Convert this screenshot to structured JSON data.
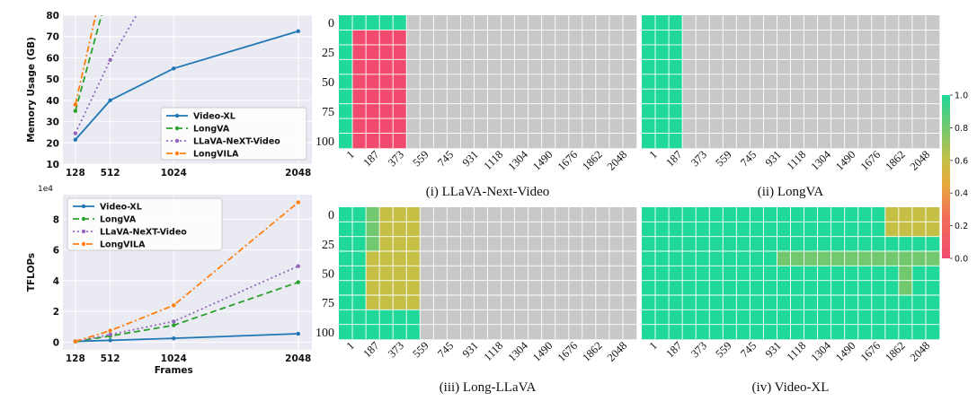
{
  "chart_data": [
    {
      "type": "line",
      "ylabel": "Memory Usage (GB)",
      "xlabel": "",
      "x_ticks": [
        "128",
        "512",
        "1024",
        "2048"
      ],
      "y_ticks": [
        "10",
        "20",
        "30",
        "40",
        "50",
        "60",
        "70",
        "80"
      ],
      "ylim": [
        10,
        80
      ],
      "grid": true,
      "legend_position": "lower-right",
      "series": [
        {
          "name": "Video-XL",
          "color": "#1f77b4",
          "style": "solid",
          "marker": "dot",
          "points": [
            [
              128,
              21.5
            ],
            [
              512,
              40
            ],
            [
              1024,
              55
            ],
            [
              2048,
              72.5
            ]
          ]
        },
        {
          "name": "LongVA",
          "color": "#2ca02c",
          "style": "dashed",
          "marker": "dot",
          "points": [
            [
              128,
              35
            ],
            [
              512,
              95
            ]
          ]
        },
        {
          "name": "LLaVA-NeXT-Video",
          "color": "#9467bd",
          "style": "dotted",
          "marker": "dot",
          "points": [
            [
              128,
              24.5
            ],
            [
              512,
              59
            ],
            [
              1024,
              110
            ]
          ]
        },
        {
          "name": "LongVILA",
          "color": "#ff7f0e",
          "style": "dashdot",
          "marker": "dot",
          "points": [
            [
              128,
              38
            ],
            [
              512,
              110
            ]
          ]
        }
      ]
    },
    {
      "type": "line",
      "ylabel": "TFLOPs",
      "xlabel": "Frames",
      "scale_label": "1e4",
      "x_ticks": [
        "128",
        "512",
        "1024",
        "2048"
      ],
      "y_ticks": [
        "0",
        "2",
        "4",
        "6",
        "8"
      ],
      "ylim": [
        -0.5,
        9.6
      ],
      "grid": true,
      "legend_position": "upper-left",
      "series": [
        {
          "name": "Video-XL",
          "color": "#1f77b4",
          "style": "solid",
          "marker": "dot",
          "points": [
            [
              128,
              0.05
            ],
            [
              512,
              0.12
            ],
            [
              1024,
              0.25
            ],
            [
              2048,
              0.55
            ]
          ]
        },
        {
          "name": "LongVA",
          "color": "#2ca02c",
          "style": "dashed",
          "marker": "dot",
          "points": [
            [
              128,
              0.05
            ],
            [
              512,
              0.4
            ],
            [
              1024,
              1.1
            ],
            [
              2048,
              3.9
            ]
          ]
        },
        {
          "name": "LLaVA-NeXT-Video",
          "color": "#9467bd",
          "style": "dotted",
          "marker": "dot",
          "points": [
            [
              128,
              0.05
            ],
            [
              512,
              0.5
            ],
            [
              1024,
              1.35
            ],
            [
              2048,
              4.95
            ]
          ]
        },
        {
          "name": "LongVILA",
          "color": "#ff7f0e",
          "style": "dashdot",
          "marker": "dot",
          "points": [
            [
              128,
              0.05
            ],
            [
              512,
              0.75
            ],
            [
              1024,
              2.4
            ],
            [
              2048,
              9.1
            ]
          ]
        }
      ]
    },
    {
      "type": "heatmap",
      "caption": "(i) LLaVA-Next-Video",
      "x_ticks": [
        "1",
        "187",
        "373",
        "559",
        "745",
        "931",
        "1118",
        "1304",
        "1490",
        "1676",
        "1862",
        "2048"
      ],
      "y_ticks": [
        "0",
        "25",
        "50",
        "75",
        "100"
      ],
      "na_color": "#c8c8c8",
      "values": [
        [
          1,
          1,
          1,
          1,
          1,
          null,
          null,
          null,
          null,
          null,
          null,
          null,
          null,
          null,
          null,
          null,
          null,
          null,
          null,
          null,
          null,
          null
        ],
        [
          1,
          0,
          0,
          0,
          0,
          null,
          null,
          null,
          null,
          null,
          null,
          null,
          null,
          null,
          null,
          null,
          null,
          null,
          null,
          null,
          null,
          null
        ],
        [
          1,
          0,
          0,
          0,
          0,
          null,
          null,
          null,
          null,
          null,
          null,
          null,
          null,
          null,
          null,
          null,
          null,
          null,
          null,
          null,
          null,
          null
        ],
        [
          1,
          0,
          0,
          0,
          0,
          null,
          null,
          null,
          null,
          null,
          null,
          null,
          null,
          null,
          null,
          null,
          null,
          null,
          null,
          null,
          null,
          null
        ],
        [
          1,
          0,
          0,
          0,
          0,
          null,
          null,
          null,
          null,
          null,
          null,
          null,
          null,
          null,
          null,
          null,
          null,
          null,
          null,
          null,
          null,
          null
        ],
        [
          1,
          0,
          0,
          0,
          0,
          null,
          null,
          null,
          null,
          null,
          null,
          null,
          null,
          null,
          null,
          null,
          null,
          null,
          null,
          null,
          null,
          null
        ],
        [
          1,
          0,
          0,
          0,
          0,
          null,
          null,
          null,
          null,
          null,
          null,
          null,
          null,
          null,
          null,
          null,
          null,
          null,
          null,
          null,
          null,
          null
        ],
        [
          1,
          0,
          0,
          0,
          0,
          null,
          null,
          null,
          null,
          null,
          null,
          null,
          null,
          null,
          null,
          null,
          null,
          null,
          null,
          null,
          null,
          null
        ],
        [
          1,
          0,
          0,
          0,
          0,
          null,
          null,
          null,
          null,
          null,
          null,
          null,
          null,
          null,
          null,
          null,
          null,
          null,
          null,
          null,
          null,
          null
        ]
      ]
    },
    {
      "type": "heatmap",
      "caption": "(ii) LongVA",
      "x_ticks": [
        "1",
        "187",
        "373",
        "559",
        "745",
        "931",
        "1118",
        "1304",
        "1490",
        "1676",
        "1862",
        "2048"
      ],
      "y_ticks": [
        "0",
        "25",
        "50",
        "75",
        "100"
      ],
      "na_color": "#c8c8c8",
      "values": [
        [
          1,
          1,
          1,
          null,
          null,
          null,
          null,
          null,
          null,
          null,
          null,
          null,
          null,
          null,
          null,
          null,
          null,
          null,
          null,
          null,
          null,
          null
        ],
        [
          1,
          1,
          1,
          null,
          null,
          null,
          null,
          null,
          null,
          null,
          null,
          null,
          null,
          null,
          null,
          null,
          null,
          null,
          null,
          null,
          null,
          null
        ],
        [
          1,
          1,
          1,
          null,
          null,
          null,
          null,
          null,
          null,
          null,
          null,
          null,
          null,
          null,
          null,
          null,
          null,
          null,
          null,
          null,
          null,
          null
        ],
        [
          1,
          1,
          1,
          null,
          null,
          null,
          null,
          null,
          null,
          null,
          null,
          null,
          null,
          null,
          null,
          null,
          null,
          null,
          null,
          null,
          null,
          null
        ],
        [
          1,
          1,
          1,
          null,
          null,
          null,
          null,
          null,
          null,
          null,
          null,
          null,
          null,
          null,
          null,
          null,
          null,
          null,
          null,
          null,
          null,
          null
        ],
        [
          1,
          1,
          1,
          null,
          null,
          null,
          null,
          null,
          null,
          null,
          null,
          null,
          null,
          null,
          null,
          null,
          null,
          null,
          null,
          null,
          null,
          null
        ],
        [
          1,
          1,
          1,
          null,
          null,
          null,
          null,
          null,
          null,
          null,
          null,
          null,
          null,
          null,
          null,
          null,
          null,
          null,
          null,
          null,
          null,
          null
        ],
        [
          1,
          1,
          1,
          null,
          null,
          null,
          null,
          null,
          null,
          null,
          null,
          null,
          null,
          null,
          null,
          null,
          null,
          null,
          null,
          null,
          null,
          null
        ],
        [
          1,
          1,
          1,
          null,
          null,
          null,
          null,
          null,
          null,
          null,
          null,
          null,
          null,
          null,
          null,
          null,
          null,
          null,
          null,
          null,
          null,
          null
        ]
      ]
    },
    {
      "type": "heatmap",
      "caption": "(iii) Long-LLaVA",
      "x_ticks": [
        "1",
        "187",
        "373",
        "559",
        "745",
        "931",
        "1118",
        "1304",
        "1490",
        "1676",
        "1862",
        "2048"
      ],
      "y_ticks": [
        "0",
        "25",
        "50",
        "75",
        "100"
      ],
      "na_color": "#c8c8c8",
      "values": [
        [
          1,
          1,
          0.8,
          0.6,
          0.6,
          0.6,
          null,
          null,
          null,
          null,
          null,
          null,
          null,
          null,
          null,
          null,
          null,
          null,
          null,
          null,
          null,
          null
        ],
        [
          1,
          1,
          0.8,
          0.6,
          0.6,
          0.6,
          null,
          null,
          null,
          null,
          null,
          null,
          null,
          null,
          null,
          null,
          null,
          null,
          null,
          null,
          null,
          null
        ],
        [
          1,
          1,
          0.8,
          0.6,
          0.6,
          0.6,
          null,
          null,
          null,
          null,
          null,
          null,
          null,
          null,
          null,
          null,
          null,
          null,
          null,
          null,
          null,
          null
        ],
        [
          1,
          1,
          0.6,
          0.6,
          0.6,
          0.6,
          null,
          null,
          null,
          null,
          null,
          null,
          null,
          null,
          null,
          null,
          null,
          null,
          null,
          null,
          null,
          null
        ],
        [
          1,
          1,
          0.6,
          0.6,
          0.6,
          0.6,
          null,
          null,
          null,
          null,
          null,
          null,
          null,
          null,
          null,
          null,
          null,
          null,
          null,
          null,
          null,
          null
        ],
        [
          1,
          1,
          0.6,
          0.6,
          0.6,
          0.6,
          null,
          null,
          null,
          null,
          null,
          null,
          null,
          null,
          null,
          null,
          null,
          null,
          null,
          null,
          null,
          null
        ],
        [
          1,
          1,
          0.6,
          0.6,
          0.6,
          0.6,
          null,
          null,
          null,
          null,
          null,
          null,
          null,
          null,
          null,
          null,
          null,
          null,
          null,
          null,
          null,
          null
        ],
        [
          1,
          1,
          1,
          1,
          1,
          1,
          null,
          null,
          null,
          null,
          null,
          null,
          null,
          null,
          null,
          null,
          null,
          null,
          null,
          null,
          null,
          null
        ],
        [
          1,
          1,
          1,
          1,
          1,
          1,
          null,
          null,
          null,
          null,
          null,
          null,
          null,
          null,
          null,
          null,
          null,
          null,
          null,
          null,
          null,
          null
        ]
      ]
    },
    {
      "type": "heatmap",
      "caption": "(iv) Video-XL",
      "x_ticks": [
        "1",
        "187",
        "373",
        "559",
        "745",
        "931",
        "1118",
        "1304",
        "1490",
        "1676",
        "1862",
        "2048"
      ],
      "y_ticks": [
        "0",
        "25",
        "50",
        "75",
        "100"
      ],
      "na_color": "#c8c8c8",
      "values": [
        [
          1,
          1,
          1,
          1,
          1,
          1,
          1,
          1,
          1,
          1,
          1,
          1,
          1,
          1,
          1,
          1,
          1,
          1,
          0.6,
          0.6,
          0.6,
          0.6
        ],
        [
          1,
          1,
          1,
          1,
          1,
          1,
          1,
          1,
          1,
          1,
          1,
          1,
          1,
          1,
          1,
          1,
          1,
          1,
          0.6,
          0.6,
          0.6,
          0.6
        ],
        [
          1,
          1,
          1,
          1,
          1,
          1,
          1,
          1,
          1,
          1,
          1,
          1,
          1,
          1,
          1,
          1,
          1,
          1,
          1,
          1,
          1,
          1
        ],
        [
          1,
          1,
          1,
          1,
          1,
          1,
          1,
          1,
          1,
          1,
          0.8,
          0.8,
          0.8,
          0.8,
          0.8,
          0.8,
          0.8,
          0.8,
          0.8,
          0.8,
          0.8,
          0.8
        ],
        [
          1,
          1,
          1,
          1,
          1,
          1,
          1,
          1,
          1,
          1,
          1,
          1,
          1,
          1,
          1,
          1,
          1,
          1,
          1,
          0.8,
          1,
          1
        ],
        [
          1,
          1,
          1,
          1,
          1,
          1,
          1,
          1,
          1,
          1,
          1,
          1,
          1,
          1,
          1,
          1,
          1,
          1,
          1,
          0.8,
          1,
          1
        ],
        [
          1,
          1,
          1,
          1,
          1,
          1,
          1,
          1,
          1,
          1,
          1,
          1,
          1,
          1,
          1,
          1,
          1,
          1,
          1,
          1,
          1,
          1
        ],
        [
          1,
          1,
          1,
          1,
          1,
          1,
          1,
          1,
          1,
          1,
          1,
          1,
          1,
          1,
          1,
          1,
          1,
          1,
          1,
          1,
          1,
          1
        ],
        [
          1,
          1,
          1,
          1,
          1,
          1,
          1,
          1,
          1,
          1,
          1,
          1,
          1,
          1,
          1,
          1,
          1,
          1,
          1,
          1,
          1,
          1
        ]
      ]
    }
  ],
  "colorbar": {
    "ticks": [
      "1.0",
      "0.8",
      "0.6",
      "0.4",
      "0.2",
      "0.0"
    ],
    "range": [
      0,
      1
    ],
    "stops": [
      {
        "v": 0.0,
        "c": "#f04a6e"
      },
      {
        "v": 0.25,
        "c": "#f06e58"
      },
      {
        "v": 0.45,
        "c": "#e8a83c"
      },
      {
        "v": 0.6,
        "c": "#c6bf46"
      },
      {
        "v": 0.8,
        "c": "#72c86e"
      },
      {
        "v": 1.0,
        "c": "#20d898"
      }
    ]
  }
}
